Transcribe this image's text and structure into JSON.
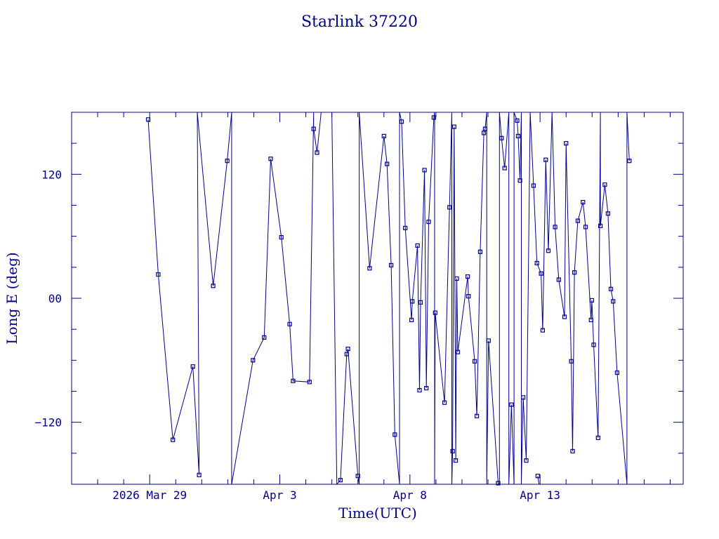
{
  "chart_data": {
    "type": "line",
    "title": "Starlink 37220",
    "xlabel": "Time(UTC)",
    "ylabel": "Long E (deg)",
    "x_unit": "days since 2026-03-26 00:00 UTC",
    "xlim": [
      0,
      23.5
    ],
    "ylim": [
      -180,
      180
    ],
    "xticks": [
      {
        "value": 3.0,
        "label": "2026 Mar 29"
      },
      {
        "value": 8.0,
        "label": "Apr  3"
      },
      {
        "value": 13.0,
        "label": "Apr  8"
      },
      {
        "value": 18.0,
        "label": "Apr 13"
      }
    ],
    "yticks": [
      {
        "value": -120,
        "label": "−120"
      },
      {
        "value": 0,
        "label": "00"
      },
      {
        "value": 120,
        "label": "120"
      }
    ],
    "color": "#00008b",
    "grid": false,
    "series": [
      {
        "name": "",
        "points": [
          [
            2.94,
            173
          ],
          [
            3.33,
            23
          ],
          [
            3.89,
            -137
          ],
          [
            4.66,
            -66
          ],
          [
            4.9,
            -171
          ],
          [
            4.83,
            180
          ],
          [
            5.44,
            12
          ],
          [
            5.98,
            133
          ],
          [
            6.15,
            180
          ],
          [
            6.15,
            -180
          ],
          [
            6.97,
            -60
          ],
          [
            7.4,
            -38
          ],
          [
            7.65,
            135
          ],
          [
            8.06,
            59
          ],
          [
            8.38,
            -25
          ],
          [
            8.51,
            -80
          ],
          [
            9.14,
            -81
          ],
          [
            9.3,
            180
          ],
          [
            9.3,
            164
          ],
          [
            9.43,
            141
          ],
          [
            9.59,
            180
          ],
          [
            10.0,
            180
          ],
          [
            10.0,
            180
          ],
          [
            10.19,
            -180
          ],
          [
            10.33,
            -176
          ],
          [
            10.57,
            -54
          ],
          [
            10.62,
            -49
          ],
          [
            11.0,
            -172
          ],
          [
            11.05,
            -180
          ],
          [
            11.05,
            180
          ],
          [
            11.45,
            29
          ],
          [
            12.0,
            157
          ],
          [
            12.12,
            130
          ],
          [
            12.28,
            32
          ],
          [
            12.42,
            -132
          ],
          [
            12.6,
            -180
          ],
          [
            12.6,
            180
          ],
          [
            12.68,
            171
          ],
          [
            12.82,
            68
          ],
          [
            13.06,
            -21
          ],
          [
            13.09,
            -3
          ],
          [
            13.29,
            51
          ],
          [
            13.37,
            -89
          ],
          [
            13.41,
            -4
          ],
          [
            13.56,
            124
          ],
          [
            13.63,
            -87
          ],
          [
            13.72,
            74
          ],
          [
            13.92,
            175
          ],
          [
            13.95,
            180
          ],
          [
            13.95,
            -180
          ],
          [
            13.97,
            -14
          ],
          [
            14.33,
            -101
          ],
          [
            14.52,
            88
          ],
          [
            14.61,
            180
          ],
          [
            14.61,
            -180
          ],
          [
            14.64,
            -148
          ],
          [
            14.7,
            166
          ],
          [
            14.76,
            -157
          ],
          [
            14.8,
            19
          ],
          [
            14.84,
            -52
          ],
          [
            15.22,
            21
          ],
          [
            15.25,
            2
          ],
          [
            15.49,
            -61
          ],
          [
            15.57,
            -114
          ],
          [
            15.7,
            45
          ],
          [
            15.84,
            160
          ],
          [
            15.89,
            164
          ],
          [
            15.95,
            180
          ],
          [
            15.95,
            -180
          ],
          [
            16.02,
            -41
          ],
          [
            16.39,
            -179
          ],
          [
            16.44,
            -180
          ],
          [
            16.44,
            180
          ],
          [
            16.52,
            155
          ],
          [
            16.64,
            126
          ],
          [
            16.8,
            180
          ],
          [
            16.8,
            -180
          ],
          [
            16.9,
            -103
          ],
          [
            17.0,
            -180
          ],
          [
            17.0,
            180
          ],
          [
            17.12,
            172
          ],
          [
            17.16,
            157
          ],
          [
            17.23,
            114
          ],
          [
            17.28,
            180
          ],
          [
            17.28,
            -180
          ],
          [
            17.35,
            -96
          ],
          [
            17.47,
            -157
          ],
          [
            17.62,
            180
          ],
          [
            17.75,
            109
          ],
          [
            17.88,
            34
          ],
          [
            18.04,
            24
          ],
          [
            18.1,
            -31
          ],
          [
            18.22,
            134
          ],
          [
            18.32,
            46
          ],
          [
            18.46,
            180
          ],
          [
            18.58,
            69
          ],
          [
            18.72,
            18
          ],
          [
            18.94,
            -18
          ],
          [
            19.0,
            150
          ],
          [
            19.2,
            -61
          ],
          [
            19.25,
            -148
          ],
          [
            19.32,
            25
          ],
          [
            19.45,
            75
          ],
          [
            19.65,
            93
          ],
          [
            19.75,
            69
          ],
          [
            19.96,
            -21
          ],
          [
            19.99,
            -2
          ],
          [
            20.06,
            -45
          ],
          [
            20.23,
            -135
          ],
          [
            20.32,
            180
          ],
          [
            20.32,
            70
          ],
          [
            20.49,
            110
          ],
          [
            20.61,
            82
          ],
          [
            20.72,
            9
          ],
          [
            20.81,
            -3
          ],
          [
            20.96,
            -72
          ],
          [
            21.34,
            -180
          ],
          [
            21.34,
            180
          ],
          [
            21.43,
            133
          ]
        ]
      },
      {
        "name": "",
        "points": [
          [
            17.91,
            -172
          ],
          [
            17.96,
            -180
          ]
        ]
      }
    ]
  }
}
